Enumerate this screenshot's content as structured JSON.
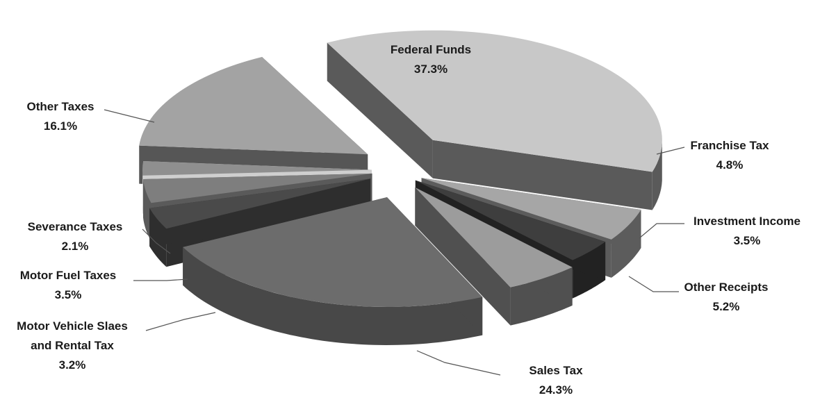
{
  "chart_data": {
    "type": "pie",
    "style": "3d-exploded",
    "grid": false,
    "legend": "none",
    "slices": [
      {
        "name": "Federal Funds",
        "value": 37.3,
        "label": "37.3%",
        "color": "#c8c8c8",
        "side": "#5a5a5a"
      },
      {
        "name": "Franchise Tax",
        "value": 4.8,
        "label": "4.8%",
        "color": "#a6a6a6",
        "side": "#5c5c5c"
      },
      {
        "name": "Investment Income",
        "value": 3.5,
        "label": "3.5%",
        "color": "#3e3e3e",
        "side": "#222222"
      },
      {
        "name": "Other Receipts",
        "value": 5.2,
        "label": "5.2%",
        "color": "#9c9c9c",
        "side": "#505050"
      },
      {
        "name": "Sales Tax",
        "value": 24.3,
        "label": "24.3%",
        "color": "#6c6c6c",
        "side": "#484848"
      },
      {
        "name": "Motor Vehicle Slaes and Rental Tax",
        "value": 3.2,
        "label": "3.2%",
        "color": "#4a4a4a",
        "side": "#2e2e2e"
      },
      {
        "name": "Motor Fuel Taxes",
        "value": 3.5,
        "label": "3.5%",
        "color": "#7e7e7e",
        "side": "#5a5a5a"
      },
      {
        "name": "Severance Taxes",
        "value": 2.1,
        "label": "2.1%",
        "color": "#8f8f8f",
        "side": "#cfcfcf"
      },
      {
        "name": "Other Taxes",
        "value": 16.1,
        "label": "16.1%",
        "color": "#a3a3a3",
        "side": "#565656"
      }
    ],
    "labels": {
      "federal_funds": {
        "line1": "Federal Funds",
        "line2": "37.3%"
      },
      "franchise_tax": {
        "line1": "Franchise Tax",
        "line2": "4.8%"
      },
      "investment_income": {
        "line1": "Investment Income",
        "line2": "3.5%"
      },
      "other_receipts": {
        "line1": "Other Receipts",
        "line2": "5.2%"
      },
      "sales_tax": {
        "line1": "Sales Tax",
        "line2": "24.3%"
      },
      "motor_vehicle": {
        "line1": "Motor Vehicle Slaes",
        "line2": "and Rental Tax",
        "line3": "3.2%"
      },
      "motor_fuel": {
        "line1": "Motor Fuel Taxes",
        "line2": "3.5%"
      },
      "severance": {
        "line1": "Severance Taxes",
        "line2": "2.1%"
      },
      "other_taxes": {
        "line1": "Other Taxes",
        "line2": "16.1%"
      }
    }
  }
}
